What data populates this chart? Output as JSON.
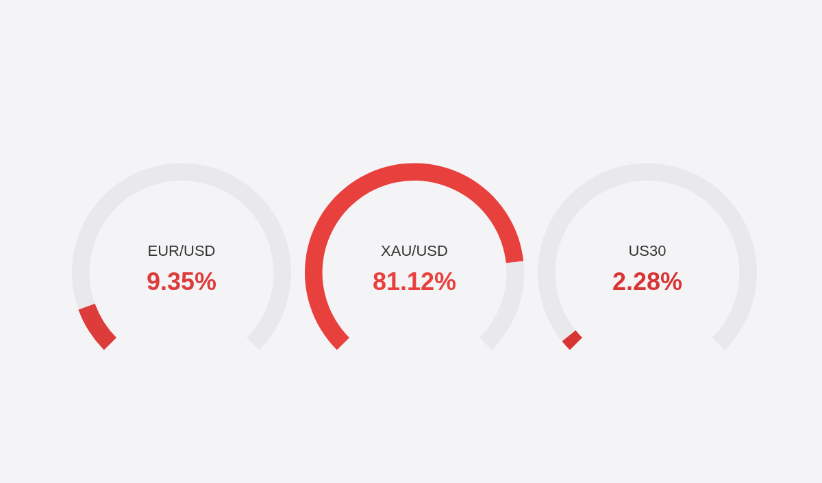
{
  "chart_data": [
    {
      "type": "donut",
      "title": "EUR/USD",
      "categories": [
        null,
        null
      ],
      "values": [
        9.35,
        90.65
      ],
      "colors": [
        "#de3b3b",
        "#e9e9eb"
      ],
      "annotations": [
        "9.35%"
      ]
    },
    {
      "type": "donut",
      "title": "XAU/USD",
      "categories": [
        null,
        null
      ],
      "values": [
        81.12,
        18.88
      ],
      "colors": [
        "#e8403c",
        "#e9e9eb"
      ],
      "annotations": [
        "81.12%"
      ]
    },
    {
      "type": "donut",
      "title": "US30",
      "categories": [
        null,
        null
      ],
      "values": [
        2.28,
        97.72
      ],
      "colors": [
        "#d83434",
        "#e9e9eb"
      ],
      "annotations": [
        "2.28%"
      ]
    }
  ]
}
